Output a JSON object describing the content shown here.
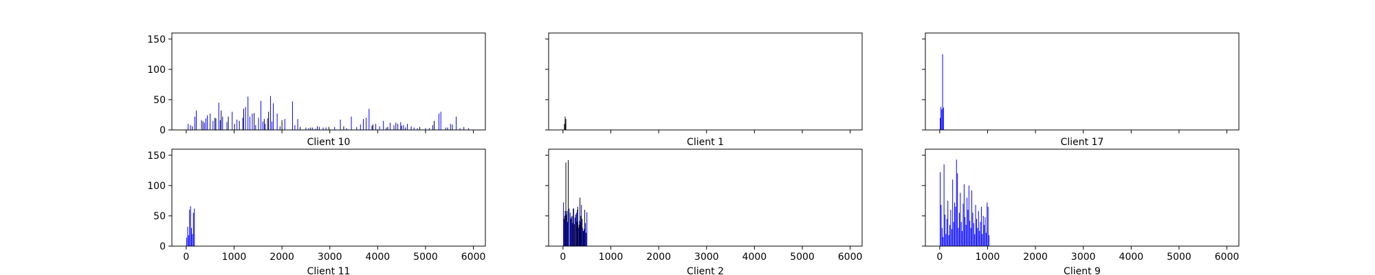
{
  "chart_data": [
    {
      "type": "bar",
      "title": "Client 10",
      "xlim": [
        -300,
        6250
      ],
      "ylim": [
        0,
        160
      ],
      "xticks": [
        0,
        1000,
        2000,
        3000,
        4000,
        5000,
        6000
      ],
      "xtick_labels_visible": false,
      "yticks": [
        0,
        50,
        100,
        150
      ],
      "ytick_labels_visible": true,
      "grid": false,
      "series": [
        {
          "color": "#0000ff",
          "x": [
            40,
            90,
            180,
            210,
            320,
            380,
            410,
            440,
            500,
            560,
            620,
            680,
            710,
            760,
            850,
            960,
            1060,
            1180,
            1240,
            1290,
            1330,
            1380,
            1450,
            1510,
            1560,
            1600,
            1650,
            1700,
            1760,
            1790,
            1820,
            1900,
            1960,
            2060,
            2220,
            2270,
            2330,
            2500,
            2560,
            2640,
            2700,
            2780,
            2860,
            2920,
            3100,
            3220,
            3350,
            3450,
            3560,
            3640,
            3700,
            3760,
            3820,
            3880,
            3960,
            4040,
            4120,
            4180,
            4260,
            4340,
            4420,
            4480,
            4540,
            4620,
            4700,
            4760,
            4830,
            5000,
            5080,
            5150,
            5280,
            5320,
            5420,
            5520,
            5640,
            5720,
            5800,
            5900
          ],
          "values": [
            10,
            8,
            22,
            32,
            16,
            12,
            19,
            24,
            27,
            15,
            19,
            45,
            16,
            22,
            13,
            30,
            17,
            20,
            38,
            55,
            22,
            27,
            8,
            20,
            48,
            14,
            10,
            19,
            56,
            14,
            44,
            27,
            6,
            18,
            47,
            8,
            18,
            4,
            3,
            4,
            2,
            5,
            4,
            4,
            5,
            17,
            3,
            22,
            5,
            9,
            18,
            20,
            35,
            7,
            10,
            6,
            15,
            4,
            12,
            8,
            10,
            13,
            8,
            10,
            6,
            4,
            3,
            3,
            3,
            8,
            27,
            30,
            4,
            10,
            22,
            3,
            5,
            3
          ]
        },
        {
          "color": "#000000",
          "x": [
            130,
            350,
            600,
            730,
            880,
            1010,
            1110,
            1200,
            1420,
            1630,
            1720,
            2000,
            2380,
            2600,
            2740,
            2980,
            3290,
            3900,
            4210,
            4380,
            4500,
            4580,
            4880,
            5180,
            5460,
            5560
          ],
          "values": [
            6,
            14,
            20,
            32,
            22,
            10,
            15,
            35,
            28,
            18,
            30,
            16,
            5,
            4,
            6,
            5,
            6,
            9,
            5,
            12,
            7,
            4,
            5,
            15,
            4,
            9
          ]
        }
      ]
    },
    {
      "type": "bar",
      "title": "Client 1",
      "xlim": [
        -300,
        6250
      ],
      "ylim": [
        0,
        160
      ],
      "xticks": [
        0,
        1000,
        2000,
        3000,
        4000,
        5000,
        6000
      ],
      "xtick_labels_visible": false,
      "yticks": [
        0,
        50,
        100,
        150
      ],
      "ytick_labels_visible": false,
      "grid": false,
      "series": [
        {
          "color": "#000000",
          "x": [
            30,
            45,
            60
          ],
          "values": [
            10,
            22,
            18
          ]
        }
      ]
    },
    {
      "type": "bar",
      "title": "Client 17",
      "xlim": [
        -300,
        6250
      ],
      "ylim": [
        0,
        160
      ],
      "xticks": [
        0,
        1000,
        2000,
        3000,
        4000,
        5000,
        6000
      ],
      "xtick_labels_visible": false,
      "yticks": [
        0,
        50,
        100,
        150
      ],
      "ytick_labels_visible": false,
      "grid": false,
      "series": [
        {
          "color": "#0000ff",
          "x": [
            10,
            25,
            45,
            60,
            80
          ],
          "values": [
            20,
            38,
            34,
            125,
            37
          ]
        }
      ]
    },
    {
      "type": "bar",
      "title": "Client 11",
      "xlim": [
        -300,
        6250
      ],
      "ylim": [
        0,
        160
      ],
      "xticks": [
        0,
        1000,
        2000,
        3000,
        4000,
        5000,
        6000
      ],
      "xtick_labels_visible": true,
      "yticks": [
        0,
        50,
        100,
        150
      ],
      "ytick_labels_visible": true,
      "grid": false,
      "series": [
        {
          "color": "#0000ff",
          "x": [
            10,
            30,
            50,
            70,
            90,
            110,
            130,
            150,
            170
          ],
          "values": [
            14,
            32,
            18,
            60,
            66,
            30,
            20,
            55,
            62
          ]
        }
      ]
    },
    {
      "type": "bar",
      "title": "Client 2",
      "xlim": [
        -300,
        6250
      ],
      "ylim": [
        0,
        160
      ],
      "xticks": [
        0,
        1000,
        2000,
        3000,
        4000,
        5000,
        6000
      ],
      "xtick_labels_visible": true,
      "yticks": [
        0,
        50,
        100,
        150
      ],
      "ytick_labels_visible": false,
      "grid": false,
      "series": [
        {
          "color": "#0000ff",
          "x": [
            10,
            25,
            45,
            70,
            95,
            130,
            150,
            175,
            200,
            225,
            250,
            280,
            300,
            320,
            345,
            365,
            385,
            410,
            440,
            470,
            500
          ],
          "values": [
            72,
            45,
            58,
            52,
            40,
            62,
            55,
            48,
            38,
            62,
            47,
            55,
            60,
            30,
            42,
            40,
            68,
            30,
            28,
            38,
            56
          ]
        },
        {
          "color": "#000000",
          "x": [
            35,
            60,
            85,
            110,
            160,
            190,
            215,
            240,
            265,
            290,
            310,
            335,
            355,
            375,
            400,
            425,
            455,
            485
          ],
          "values": [
            50,
            138,
            58,
            142,
            45,
            50,
            62,
            36,
            52,
            40,
            65,
            35,
            80,
            50,
            45,
            25,
            60,
            22
          ]
        }
      ]
    },
    {
      "type": "bar",
      "title": "Client 9",
      "xlim": [
        -300,
        6250
      ],
      "ylim": [
        0,
        160
      ],
      "xticks": [
        0,
        1000,
        2000,
        3000,
        4000,
        5000,
        6000
      ],
      "xtick_labels_visible": true,
      "yticks": [
        0,
        50,
        100,
        150
      ],
      "ytick_labels_visible": false,
      "grid": false,
      "series": [
        {
          "color": "#0000ff",
          "x": [
            10,
            30,
            50,
            70,
            90,
            110,
            130,
            150,
            170,
            190,
            210,
            230,
            250,
            270,
            290,
            310,
            330,
            350,
            370,
            390,
            410,
            430,
            450,
            470,
            490,
            510,
            530,
            550,
            570,
            590,
            610,
            630,
            650,
            670,
            690,
            710,
            730,
            750,
            770,
            790,
            810,
            830,
            850,
            870,
            890,
            910,
            930,
            950,
            970,
            990,
            1010,
            1030
          ],
          "values": [
            122,
            68,
            30,
            15,
            135,
            52,
            20,
            45,
            75,
            18,
            35,
            60,
            28,
            110,
            40,
            72,
            65,
            143,
            120,
            30,
            55,
            88,
            40,
            25,
            70,
            102,
            48,
            35,
            80,
            60,
            100,
            42,
            30,
            92,
            55,
            38,
            20,
            68,
            45,
            30,
            58,
            25,
            40,
            65,
            20,
            50,
            35,
            48,
            22,
            72,
            65,
            18
          ]
        }
      ]
    }
  ]
}
